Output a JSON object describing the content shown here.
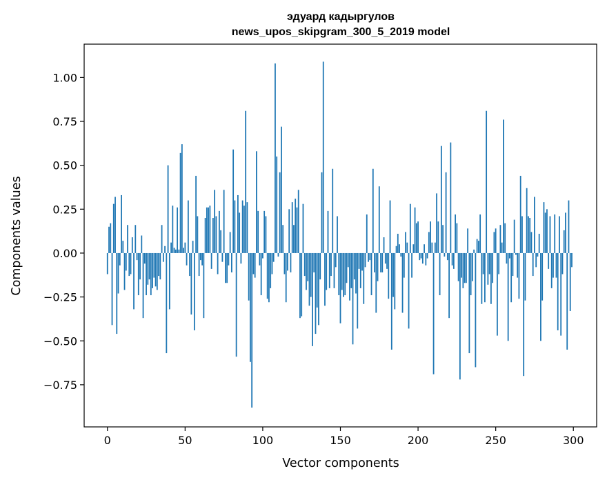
{
  "chart_data": {
    "type": "bar",
    "title": "эдуард кадыргулов",
    "subtitle": "news_upos_skipgram_300_5_2019 model",
    "xlabel": "Vector components",
    "ylabel": "Components values",
    "xlim": [
      -15,
      315
    ],
    "ylim": [
      -0.99,
      1.19
    ],
    "xticks": [
      0,
      50,
      100,
      150,
      200,
      250,
      300
    ],
    "xtick_labels": [
      "0",
      "50",
      "100",
      "150",
      "200",
      "250",
      "300"
    ],
    "yticks": [
      -0.75,
      -0.5,
      -0.25,
      0.0,
      0.25,
      0.5,
      0.75,
      1.0
    ],
    "ytick_labels": [
      "−0.75",
      "−0.50",
      "−0.25",
      "0.00",
      "0.25",
      "0.50",
      "0.75",
      "1.00"
    ],
    "bar_color": "#1f77b4",
    "x": "0..299",
    "values": [
      -0.12,
      0.15,
      0.17,
      -0.41,
      0.28,
      0.32,
      -0.46,
      -0.23,
      -0.07,
      0.33,
      0.07,
      -0.21,
      -0.1,
      0.16,
      -0.13,
      -0.12,
      0.09,
      -0.32,
      0.16,
      -0.04,
      -0.24,
      -0.15,
      0.1,
      -0.37,
      -0.06,
      -0.24,
      -0.18,
      -0.15,
      -0.24,
      -0.2,
      -0.14,
      -0.19,
      -0.21,
      -0.13,
      -0.15,
      0.16,
      -0.05,
      0.04,
      -0.57,
      0.5,
      -0.32,
      0.06,
      0.27,
      0.03,
      0.02,
      0.26,
      0.02,
      0.57,
      0.62,
      0.03,
      0.06,
      -0.07,
      0.3,
      -0.13,
      -0.35,
      0.07,
      -0.44,
      0.44,
      0.21,
      -0.13,
      -0.04,
      -0.07,
      -0.37,
      0.2,
      0.26,
      0.26,
      0.27,
      -0.09,
      0.2,
      0.36,
      0.21,
      -0.12,
      0.24,
      0.13,
      -0.05,
      0.36,
      -0.17,
      -0.17,
      -0.07,
      0.12,
      -0.11,
      0.59,
      0.3,
      -0.59,
      0.33,
      0.23,
      -0.06,
      0.3,
      0.27,
      0.81,
      0.29,
      -0.27,
      -0.62,
      -0.88,
      -0.12,
      -0.14,
      0.58,
      0.24,
      -0.07,
      -0.24,
      -0.03,
      0.24,
      0.21,
      -0.26,
      -0.28,
      -0.2,
      -0.12,
      -0.05,
      1.08,
      0.55,
      -0.02,
      0.46,
      0.72,
      0.16,
      -0.12,
      -0.28,
      -0.1,
      0.25,
      -0.11,
      0.29,
      0.16,
      0.31,
      0.26,
      0.36,
      -0.37,
      -0.36,
      0.28,
      -0.13,
      -0.21,
      -0.16,
      -0.3,
      -0.25,
      -0.53,
      -0.11,
      -0.46,
      -0.31,
      -0.41,
      -0.15,
      0.46,
      1.09,
      -0.3,
      -0.21,
      0.24,
      -0.2,
      -0.13,
      0.48,
      -0.2,
      -0.08,
      0.21,
      -0.24,
      -0.4,
      -0.21,
      -0.25,
      -0.24,
      -0.17,
      -0.08,
      -0.27,
      -0.2,
      -0.52,
      -0.15,
      -0.23,
      -0.43,
      -0.09,
      -0.2,
      -0.1,
      -0.29,
      -0.08,
      0.22,
      -0.05,
      -0.04,
      -0.24,
      0.48,
      -0.11,
      -0.34,
      -0.16,
      0.38,
      -0.11,
      -0.11,
      0.09,
      -0.06,
      -0.09,
      -0.26,
      0.3,
      -0.55,
      -0.25,
      -0.32,
      0.04,
      0.11,
      0.05,
      -0.02,
      -0.34,
      -0.14,
      0.12,
      0.06,
      -0.43,
      0.28,
      -0.14,
      0.05,
      0.26,
      0.17,
      0.18,
      -0.04,
      -0.03,
      -0.06,
      0.05,
      -0.07,
      -0.03,
      0.12,
      0.18,
      0.06,
      -0.69,
      0.06,
      0.34,
      0.18,
      -0.24,
      0.61,
      0.16,
      -0.02,
      0.46,
      -0.04,
      -0.37,
      0.63,
      -0.07,
      -0.09,
      0.22,
      0.17,
      -0.16,
      -0.72,
      -0.14,
      -0.2,
      -0.17,
      -0.17,
      0.14,
      -0.57,
      -0.24,
      -0.16,
      0.02,
      -0.65,
      0.08,
      0.07,
      0.22,
      -0.29,
      -0.12,
      -0.28,
      0.81,
      -0.18,
      -0.12,
      -0.29,
      -0.17,
      0.12,
      0.14,
      -0.47,
      -0.12,
      0.16,
      0.06,
      0.76,
      0.17,
      -0.06,
      -0.5,
      -0.03,
      -0.28,
      -0.13,
      0.19,
      -0.01,
      -0.14,
      -0.26,
      0.44,
      0.21,
      -0.7,
      -0.27,
      0.37,
      0.21,
      0.2,
      0.12,
      -0.13,
      0.32,
      -0.08,
      -0.02,
      0.11,
      -0.5,
      -0.27,
      0.29,
      0.23,
      0.25,
      -0.09,
      0.21,
      -0.2,
      -0.14,
      0.22,
      -0.14,
      -0.44,
      0.21,
      -0.47,
      -0.12,
      0.13,
      0.23,
      -0.55,
      0.3,
      -0.33,
      -0.08
    ]
  }
}
